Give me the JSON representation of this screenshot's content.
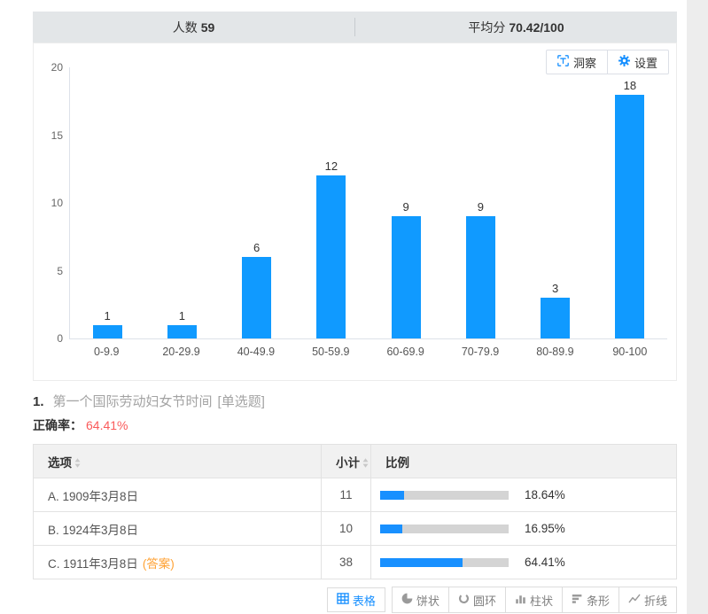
{
  "stats": {
    "count_label": "人数",
    "count_value": "59",
    "avg_label": "平均分",
    "avg_value": "70.42/100"
  },
  "chart_panel": {
    "insight_label": "洞察",
    "settings_label": "设置"
  },
  "chart_data": {
    "type": "bar",
    "title": "",
    "xlabel": "",
    "ylabel": "",
    "categories": [
      "0-9.9",
      "20-29.9",
      "40-49.9",
      "50-59.9",
      "60-69.9",
      "70-79.9",
      "80-89.9",
      "90-100"
    ],
    "values": [
      1,
      1,
      6,
      12,
      9,
      9,
      3,
      18
    ],
    "ylim": [
      0,
      20
    ],
    "yticks": [
      0,
      5,
      10,
      15,
      20
    ],
    "grid": false,
    "legend_position": "none",
    "bar_color": "#109aff"
  },
  "question": {
    "number": "1.",
    "text": "第一个国际劳动妇女节时间",
    "type_tag": "[单选题]",
    "accuracy_label": "正确率：",
    "accuracy_value": "64.41%"
  },
  "table": {
    "headers": [
      {
        "key": "option",
        "label": "选项",
        "sortable": true
      },
      {
        "key": "count",
        "label": "小计",
        "sortable": true
      },
      {
        "key": "ratio",
        "label": "比例",
        "sortable": false
      }
    ],
    "rows": [
      {
        "option": "A. 1909年3月8日",
        "answer_tag": "",
        "count": "11",
        "percent": "18.64%",
        "percent_value": 18.64
      },
      {
        "option": "B. 1924年3月8日",
        "answer_tag": "",
        "count": "10",
        "percent": "16.95%",
        "percent_value": 16.95
      },
      {
        "option": "C. 1911年3月8日",
        "answer_tag": "(答案)",
        "count": "38",
        "percent": "64.41%",
        "percent_value": 64.41
      }
    ]
  },
  "toolbar": {
    "buttons": [
      {
        "key": "table",
        "label": "表格",
        "icon": "table-icon",
        "active": true
      },
      {
        "key": "pie",
        "label": "饼状",
        "icon": "pie-icon",
        "active": false
      },
      {
        "key": "donut",
        "label": "圆环",
        "icon": "donut-icon",
        "active": false
      },
      {
        "key": "column",
        "label": "柱状",
        "icon": "column-icon",
        "active": false
      },
      {
        "key": "bar",
        "label": "条形",
        "icon": "bar-icon",
        "active": false
      },
      {
        "key": "line",
        "label": "折线",
        "icon": "line-icon",
        "active": false
      }
    ]
  },
  "colors": {
    "accent_blue": "#1890ff",
    "bar_blue": "#109aff",
    "progress_track": "#d4d4d4",
    "stat_bar_bg": "#e3e6e8",
    "accuracy_red": "#fa5a5a",
    "answer_orange": "#ffa234"
  }
}
